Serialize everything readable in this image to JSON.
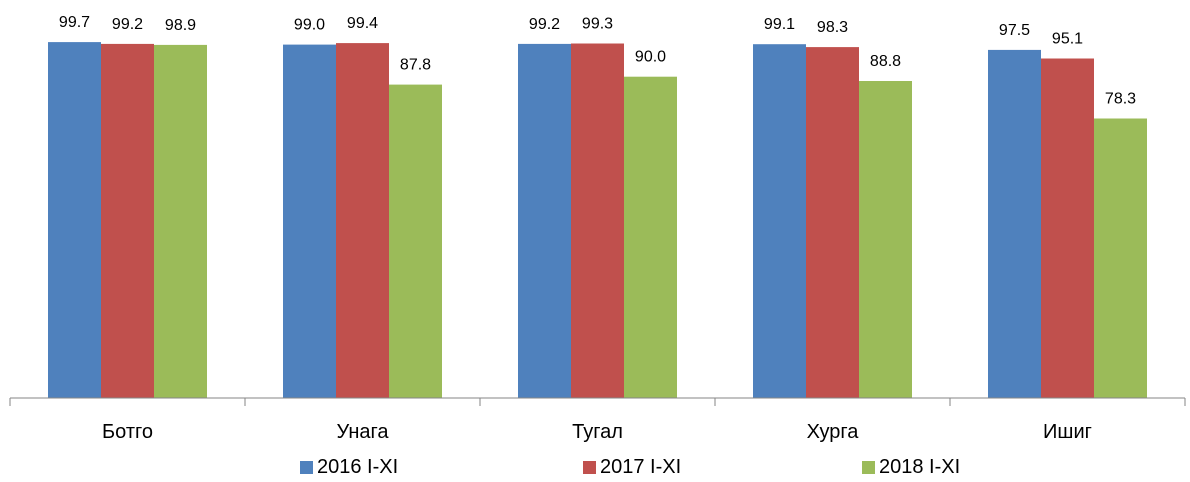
{
  "chart_data": {
    "type": "bar",
    "categories": [
      "Ботго",
      "Унага",
      "Тугал",
      "Хурга",
      "Ишиг"
    ],
    "series": [
      {
        "name": "2016 I-XI",
        "color": "#4F81BD",
        "values": [
          99.7,
          99.0,
          99.2,
          99.1,
          97.5
        ]
      },
      {
        "name": "2017 I-XI",
        "color": "#C0504D",
        "values": [
          99.2,
          99.4,
          99.3,
          98.3,
          95.1
        ]
      },
      {
        "name": "2018 I-XI",
        "color": "#9BBB59",
        "values": [
          98.9,
          87.8,
          90.0,
          88.8,
          78.3
        ]
      }
    ],
    "ylim": [
      0,
      100
    ],
    "grid": false,
    "data_labels": true,
    "legend_position": "bottom"
  }
}
